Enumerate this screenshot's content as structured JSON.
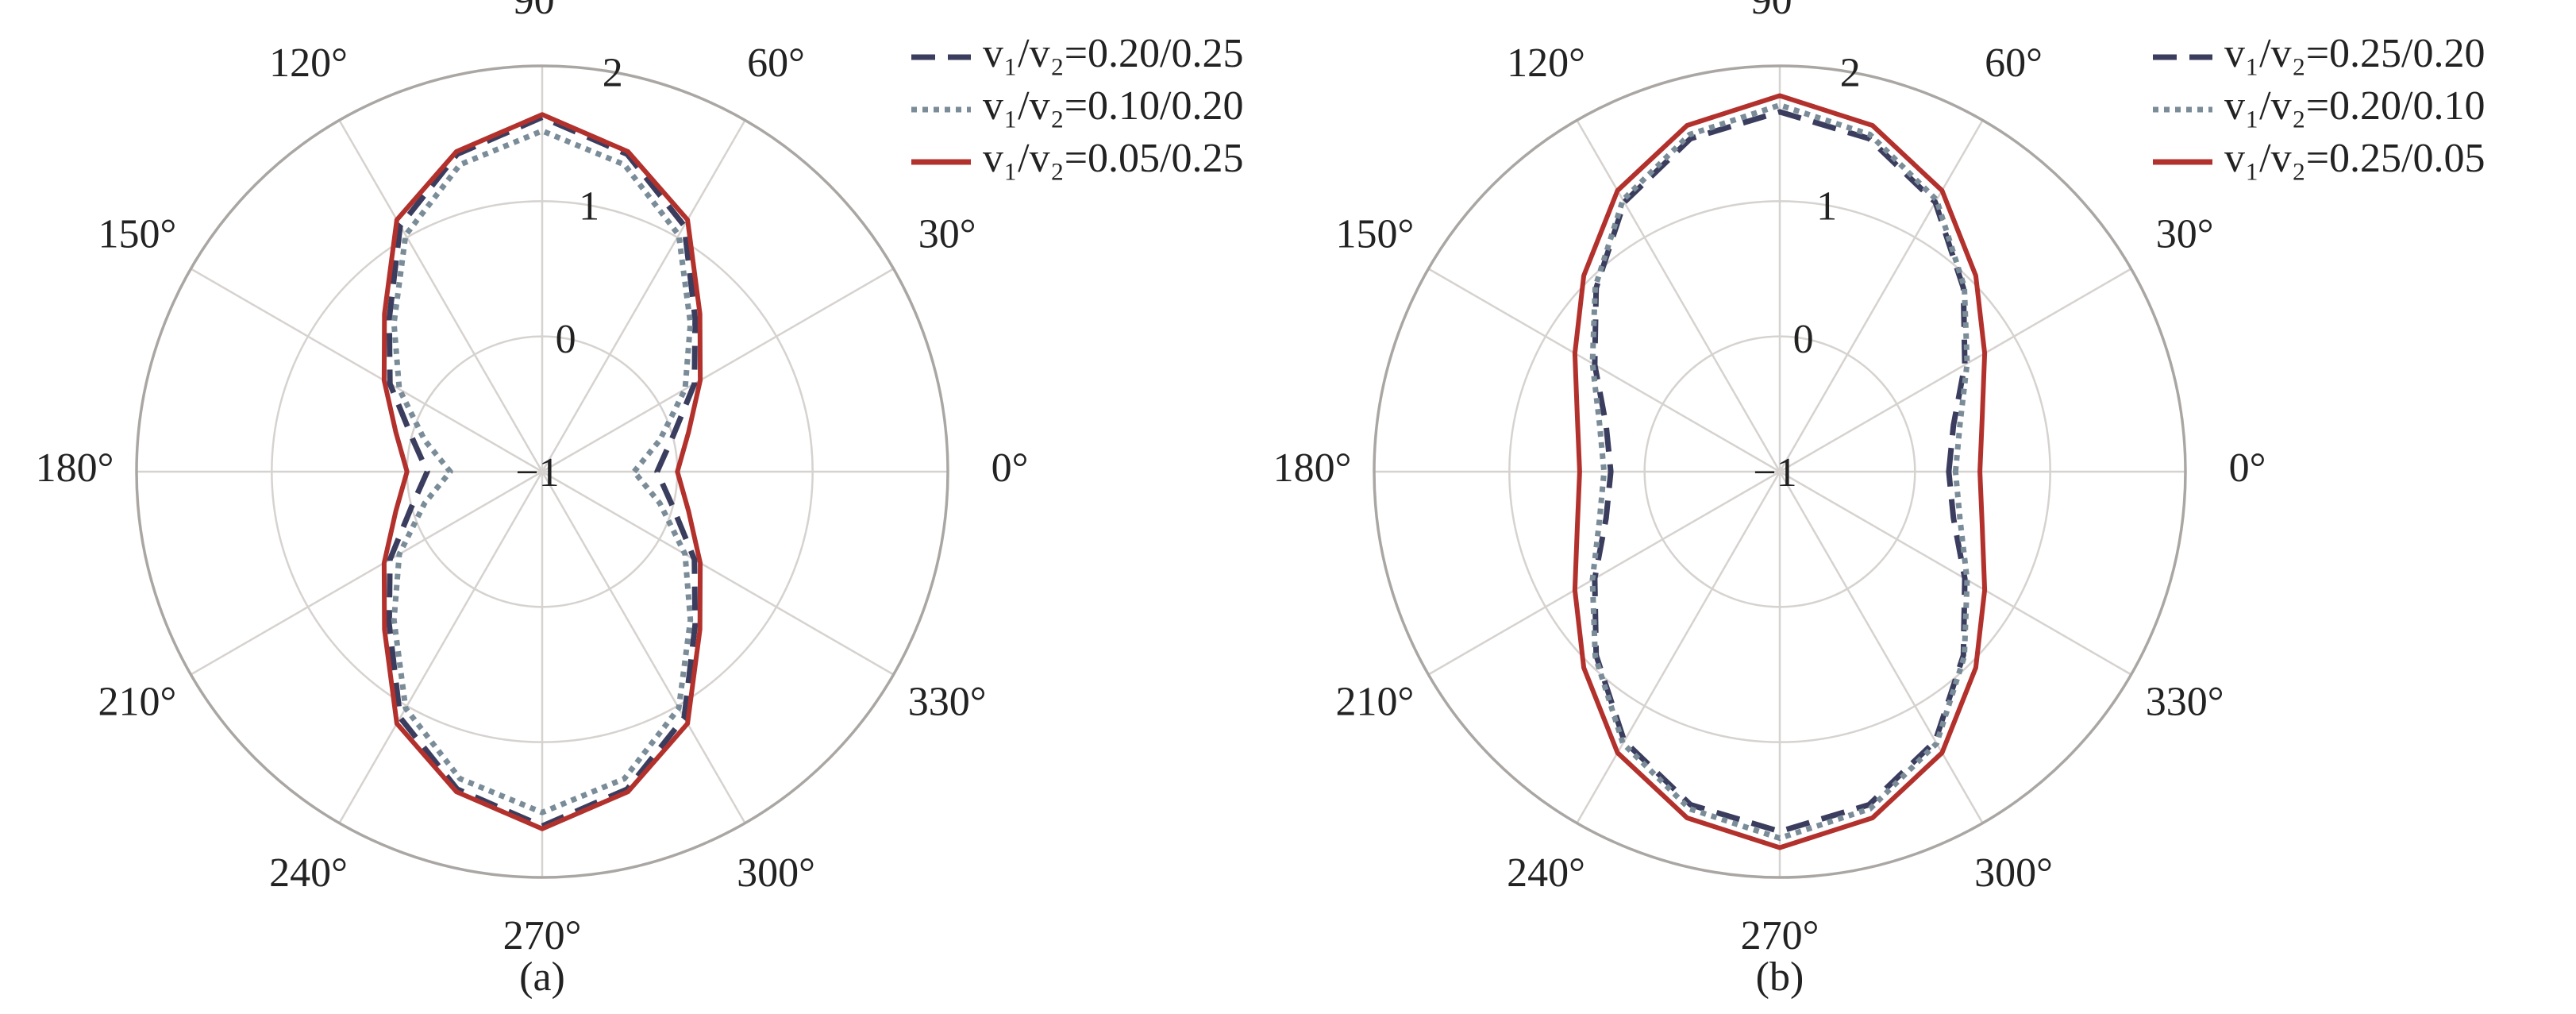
{
  "chart_data": [
    {
      "type": "polar",
      "caption": "(a)",
      "x": [
        0,
        15,
        30,
        45,
        60,
        75,
        90,
        105,
        120,
        135,
        150,
        165,
        180,
        195,
        210,
        225,
        240,
        255,
        270,
        285,
        300,
        315,
        330,
        345
      ],
      "rlim": [
        -1,
        2
      ],
      "rticks": [
        {
          "value": -1,
          "label": "−1"
        },
        0,
        1,
        2
      ],
      "thetaticks": [
        {
          "value": 0,
          "label": "0°"
        },
        {
          "value": 30,
          "label": "30°"
        },
        {
          "value": 60,
          "label": "60°"
        },
        {
          "value": 90,
          "label": "90°"
        },
        {
          "value": 120,
          "label": "120°"
        },
        {
          "value": 150,
          "label": "150°"
        },
        {
          "value": 180,
          "label": "180°"
        },
        {
          "value": 210,
          "label": "210°"
        },
        {
          "value": 240,
          "label": "240°"
        },
        {
          "value": 270,
          "label": "270°"
        },
        {
          "value": 300,
          "label": "300°"
        },
        {
          "value": 330,
          "label": "330°"
        }
      ],
      "grid": true,
      "series": [
        {
          "name": "v₁/v₂=0.20/0.25",
          "color": "#3b3d5e",
          "dash": "dashed",
          "values": [
            -0.15,
            0.0,
            0.3,
            0.6,
            1.1,
            1.43,
            1.62,
            1.43,
            1.1,
            0.6,
            0.3,
            0.0,
            -0.15,
            0.0,
            0.3,
            0.6,
            1.1,
            1.43,
            1.62,
            1.43,
            1.1,
            0.6,
            0.3,
            0.0
          ]
        },
        {
          "name": "v₁/v₂=0.10/0.20",
          "color": "#7b8c99",
          "dash": "dotted",
          "values": [
            -0.32,
            -0.1,
            0.22,
            0.55,
            1.02,
            1.35,
            1.52,
            1.35,
            1.02,
            0.55,
            0.22,
            -0.1,
            -0.32,
            -0.1,
            0.22,
            0.55,
            1.02,
            1.35,
            1.52,
            1.35,
            1.02,
            0.55,
            0.22,
            -0.1
          ]
        },
        {
          "name": "v₁/v₂=0.05/0.25",
          "color": "#b3312c",
          "dash": "solid",
          "values": [
            0.0,
            0.12,
            0.35,
            0.65,
            1.15,
            1.45,
            1.64,
            1.45,
            1.15,
            0.65,
            0.35,
            0.12,
            0.0,
            0.12,
            0.35,
            0.65,
            1.15,
            1.45,
            1.64,
            1.45,
            1.15,
            0.65,
            0.35,
            0.12
          ]
        }
      ]
    },
    {
      "type": "polar",
      "caption": "(b)",
      "x": [
        0,
        15,
        30,
        45,
        60,
        75,
        90,
        105,
        120,
        135,
        150,
        165,
        180,
        195,
        210,
        225,
        240,
        255,
        270,
        285,
        300,
        315,
        330,
        345
      ],
      "rlim": [
        -1,
        2
      ],
      "rticks": [
        {
          "value": -1,
          "label": "−1"
        },
        0,
        1,
        2
      ],
      "thetaticks": [
        {
          "value": 0,
          "label": "0°"
        },
        {
          "value": 30,
          "label": "30°"
        },
        {
          "value": 60,
          "label": "60°"
        },
        {
          "value": 90,
          "label": "90°"
        },
        {
          "value": 120,
          "label": "120°"
        },
        {
          "value": 150,
          "label": "150°"
        },
        {
          "value": 180,
          "label": "180°"
        },
        {
          "value": 210,
          "label": "210°"
        },
        {
          "value": 240,
          "label": "240°"
        },
        {
          "value": 270,
          "label": "270°"
        },
        {
          "value": 300,
          "label": "300°"
        },
        {
          "value": 330,
          "label": "330°"
        }
      ],
      "grid": true,
      "series": [
        {
          "name": "v₁/v₂=0.25/0.20",
          "color": "#3b3d5e",
          "dash": "dashed",
          "values": [
            0.25,
            0.33,
            0.58,
            0.92,
            1.3,
            1.55,
            1.66,
            1.55,
            1.3,
            0.92,
            0.58,
            0.33,
            0.25,
            0.33,
            0.58,
            0.92,
            1.3,
            1.55,
            1.66,
            1.55,
            1.3,
            0.92,
            0.58,
            0.33
          ]
        },
        {
          "name": "v₁/v₂=0.20/0.10",
          "color": "#7b8c99",
          "dash": "dotted",
          "values": [
            0.3,
            0.38,
            0.6,
            0.93,
            1.32,
            1.58,
            1.71,
            1.58,
            1.32,
            0.93,
            0.6,
            0.38,
            0.3,
            0.38,
            0.6,
            0.93,
            1.32,
            1.58,
            1.71,
            1.58,
            1.32,
            0.93,
            0.6,
            0.38
          ]
        },
        {
          "name": "v₁/v₂=0.25/0.05",
          "color": "#b3312c",
          "dash": "solid",
          "values": [
            0.48,
            0.55,
            0.75,
            1.05,
            1.4,
            1.65,
            1.78,
            1.65,
            1.4,
            1.05,
            0.75,
            0.55,
            0.48,
            0.55,
            0.75,
            1.05,
            1.4,
            1.65,
            1.78,
            1.65,
            1.4,
            1.05,
            0.75,
            0.55
          ]
        }
      ]
    }
  ]
}
